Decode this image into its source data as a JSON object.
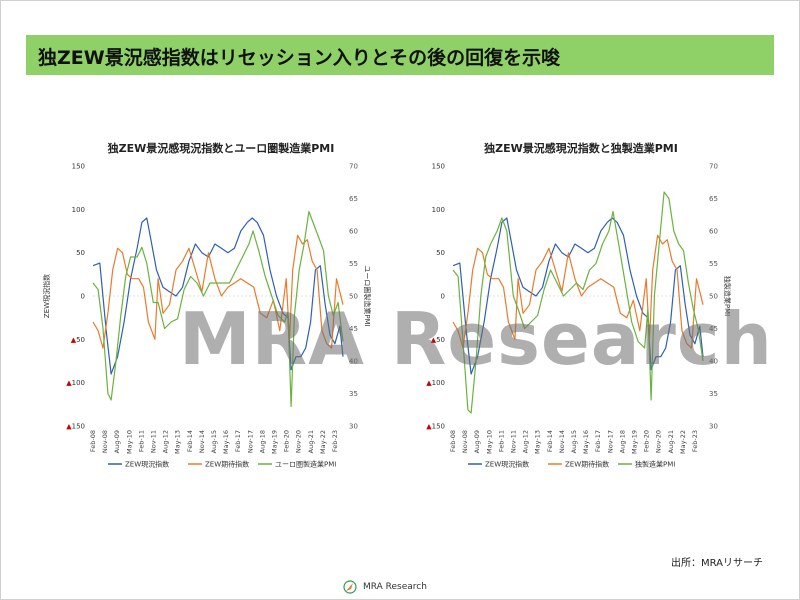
{
  "banner": {
    "title": "独ZEW景況感指数はリセッション入りとその後の回復を示唆"
  },
  "source_note": "出所：MRAリサーチ",
  "watermark": "MRA Research",
  "footer_logo": "MRA Research",
  "colors": {
    "zew_current": "#2f5fb3",
    "zew_expect": "#e87b2c",
    "pmi": "#6ab33d",
    "negative_marker": "#cc0000",
    "banner": "#8fd067"
  },
  "chart_data": [
    {
      "type": "line",
      "title": "独ZEW景況感現況指数とユーロ圏製造業PMI",
      "ylabel": "ZEW現況指数",
      "y2label": "ユーロ圏製造業PMI",
      "ylim": [
        -150,
        150
      ],
      "y_ticks": [
        "150",
        "100",
        "50",
        "0",
        "▲50",
        "▲100",
        "▲150"
      ],
      "y2lim": [
        30,
        70
      ],
      "y2_ticks": [
        "70",
        "65",
        "60",
        "55",
        "50",
        "45",
        "40",
        "35",
        "30"
      ],
      "x_range": [
        2008.083,
        2023.5
      ],
      "x_tick_labels": [
        "Feb-08",
        "Nov-08",
        "Aug-09",
        "May-10",
        "Feb-11",
        "Nov-11",
        "Aug-12",
        "May-13",
        "Feb-14",
        "Nov-14",
        "Aug-15",
        "May-16",
        "Feb-17",
        "Nov-17",
        "Aug-18",
        "May-19",
        "Feb-20",
        "Nov-20",
        "Aug-21",
        "May-22",
        "Feb-23"
      ],
      "legend": [
        "ZEW現況指数",
        "ZEW期待指数",
        "ユーロ圏製造業PMI"
      ],
      "legend_position": "bottom",
      "series": [
        {
          "name": "ZEW現況指数",
          "axis": "left",
          "x": [
            2008.08,
            2008.5,
            2008.9,
            2009.2,
            2009.6,
            2010.0,
            2010.4,
            2010.8,
            2011.1,
            2011.4,
            2011.7,
            2012.0,
            2012.4,
            2012.8,
            2013.2,
            2013.6,
            2014.0,
            2014.4,
            2014.8,
            2015.2,
            2015.6,
            2016.0,
            2016.4,
            2016.8,
            2017.2,
            2017.6,
            2017.9,
            2018.2,
            2018.6,
            2019.0,
            2019.4,
            2019.8,
            2020.1,
            2020.3,
            2020.6,
            2020.9,
            2021.2,
            2021.5,
            2021.8,
            2022.1,
            2022.4,
            2022.7,
            2023.0,
            2023.3,
            2023.5
          ],
          "y": [
            35,
            38,
            -40,
            -90,
            -70,
            -30,
            20,
            55,
            85,
            90,
            60,
            30,
            10,
            5,
            0,
            10,
            40,
            60,
            50,
            45,
            60,
            55,
            50,
            55,
            75,
            85,
            90,
            85,
            70,
            30,
            0,
            -20,
            -25,
            -85,
            -70,
            -70,
            -60,
            -30,
            30,
            35,
            -10,
            -45,
            -55,
            -35,
            -70
          ]
        },
        {
          "name": "ZEW期待指数",
          "axis": "left",
          "x": [
            2008.08,
            2008.4,
            2008.7,
            2009.0,
            2009.3,
            2009.6,
            2009.9,
            2010.2,
            2010.5,
            2010.9,
            2011.2,
            2011.5,
            2011.9,
            2012.1,
            2012.4,
            2012.8,
            2013.2,
            2013.6,
            2014.0,
            2014.4,
            2014.8,
            2015.2,
            2015.6,
            2016.0,
            2016.4,
            2016.8,
            2017.2,
            2017.6,
            2018.0,
            2018.4,
            2018.8,
            2019.2,
            2019.6,
            2020.0,
            2020.2,
            2020.4,
            2020.7,
            2021.0,
            2021.3,
            2021.6,
            2021.9,
            2022.2,
            2022.5,
            2022.8,
            2023.1,
            2023.5
          ],
          "y": [
            -30,
            -40,
            -60,
            -20,
            30,
            55,
            50,
            25,
            20,
            20,
            10,
            -30,
            -50,
            20,
            -20,
            -10,
            30,
            40,
            55,
            30,
            5,
            50,
            20,
            0,
            10,
            15,
            20,
            15,
            10,
            -20,
            -25,
            -5,
            -40,
            20,
            -50,
            30,
            70,
            60,
            65,
            40,
            30,
            -40,
            -55,
            -60,
            20,
            -10
          ]
        },
        {
          "name": "ユーロ圏製造業PMI",
          "axis": "right",
          "x": [
            2008.08,
            2008.4,
            2008.7,
            2009.0,
            2009.2,
            2009.5,
            2009.8,
            2010.1,
            2010.4,
            2010.8,
            2011.1,
            2011.4,
            2011.8,
            2012.1,
            2012.5,
            2012.9,
            2013.3,
            2013.7,
            2014.1,
            2014.5,
            2014.9,
            2015.3,
            2015.7,
            2016.1,
            2016.5,
            2016.9,
            2017.3,
            2017.7,
            2017.95,
            2018.3,
            2018.7,
            2019.1,
            2019.5,
            2019.9,
            2020.1,
            2020.3,
            2020.5,
            2020.8,
            2021.1,
            2021.4,
            2021.7,
            2022.0,
            2022.3,
            2022.6,
            2022.9,
            2023.2,
            2023.5
          ],
          "y": [
            52,
            51,
            45,
            35,
            34,
            40,
            47,
            53,
            56,
            56,
            57.5,
            55,
            49,
            49,
            45,
            46,
            46.5,
            51,
            53,
            52,
            50,
            52,
            52,
            52,
            52,
            54,
            56,
            58,
            60,
            57,
            53,
            50,
            47,
            46,
            47.5,
            33,
            47,
            54,
            58,
            63,
            61,
            59,
            57,
            50,
            47,
            49,
            43
          ]
        }
      ]
    },
    {
      "type": "line",
      "title": "独ZEW景況感現況指数と独製造業PMI",
      "ylabel": "",
      "y2label": "独製造業PMI",
      "ylim": [
        -150,
        150
      ],
      "y_ticks": [
        "150",
        "100",
        "50",
        "0",
        "▲50",
        "▲100",
        "▲150"
      ],
      "y2lim": [
        30,
        70
      ],
      "y2_ticks": [
        "70",
        "65",
        "60",
        "55",
        "50",
        "45",
        "40",
        "35",
        "30"
      ],
      "x_range": [
        2008.083,
        2023.5
      ],
      "x_tick_labels": [
        "Feb-08",
        "Nov-08",
        "Aug-09",
        "May-10",
        "Feb-11",
        "Nov-11",
        "Aug-12",
        "May-13",
        "Feb-14",
        "Nov-14",
        "Aug-15",
        "May-16",
        "Feb-17",
        "Nov-17",
        "Aug-18",
        "May-19",
        "Feb-20",
        "Nov-20",
        "Aug-21",
        "May-22",
        "Feb-23"
      ],
      "legend": [
        "ZEW現況指数",
        "ZEW期待指数",
        "独製造業PMI"
      ],
      "legend_position": "bottom",
      "series": [
        {
          "name": "ZEW現況指数",
          "axis": "left",
          "x": [
            2008.08,
            2008.5,
            2008.9,
            2009.2,
            2009.6,
            2010.0,
            2010.4,
            2010.8,
            2011.1,
            2011.4,
            2011.7,
            2012.0,
            2012.4,
            2012.8,
            2013.2,
            2013.6,
            2014.0,
            2014.4,
            2014.8,
            2015.2,
            2015.6,
            2016.0,
            2016.4,
            2016.8,
            2017.2,
            2017.6,
            2017.9,
            2018.2,
            2018.6,
            2019.0,
            2019.4,
            2019.8,
            2020.1,
            2020.3,
            2020.6,
            2020.9,
            2021.2,
            2021.5,
            2021.8,
            2022.1,
            2022.4,
            2022.7,
            2023.0,
            2023.3,
            2023.5
          ],
          "y": [
            35,
            38,
            -40,
            -90,
            -70,
            -30,
            20,
            55,
            85,
            90,
            60,
            30,
            10,
            5,
            0,
            10,
            40,
            60,
            50,
            45,
            60,
            55,
            50,
            55,
            75,
            85,
            90,
            85,
            70,
            30,
            0,
            -20,
            -25,
            -85,
            -70,
            -70,
            -60,
            -30,
            30,
            35,
            -10,
            -45,
            -55,
            -35,
            -70
          ]
        },
        {
          "name": "ZEW期待指数",
          "axis": "left",
          "x": [
            2008.08,
            2008.4,
            2008.7,
            2009.0,
            2009.3,
            2009.6,
            2009.9,
            2010.2,
            2010.5,
            2010.9,
            2011.2,
            2011.5,
            2011.9,
            2012.1,
            2012.4,
            2012.8,
            2013.2,
            2013.6,
            2014.0,
            2014.4,
            2014.8,
            2015.2,
            2015.6,
            2016.0,
            2016.4,
            2016.8,
            2017.2,
            2017.6,
            2018.0,
            2018.4,
            2018.8,
            2019.2,
            2019.6,
            2020.0,
            2020.2,
            2020.4,
            2020.7,
            2021.0,
            2021.3,
            2021.6,
            2021.9,
            2022.2,
            2022.5,
            2022.8,
            2023.1,
            2023.5
          ],
          "y": [
            -30,
            -40,
            -60,
            -20,
            30,
            55,
            50,
            25,
            20,
            20,
            10,
            -30,
            -50,
            20,
            -20,
            -10,
            30,
            40,
            55,
            30,
            5,
            50,
            20,
            0,
            10,
            15,
            20,
            15,
            10,
            -20,
            -25,
            -5,
            -40,
            20,
            -50,
            30,
            70,
            60,
            65,
            40,
            30,
            -40,
            -55,
            -60,
            20,
            -10
          ]
        },
        {
          "name": "独製造業PMI",
          "axis": "right",
          "x": [
            2008.08,
            2008.4,
            2008.7,
            2009.0,
            2009.2,
            2009.5,
            2009.8,
            2010.1,
            2010.4,
            2010.8,
            2011.1,
            2011.4,
            2011.8,
            2012.1,
            2012.5,
            2012.9,
            2013.3,
            2013.7,
            2014.1,
            2014.5,
            2014.9,
            2015.3,
            2015.7,
            2016.1,
            2016.5,
            2016.9,
            2017.3,
            2017.7,
            2017.95,
            2018.3,
            2018.7,
            2019.1,
            2019.5,
            2019.9,
            2020.1,
            2020.3,
            2020.5,
            2020.8,
            2021.1,
            2021.4,
            2021.7,
            2022.0,
            2022.3,
            2022.6,
            2022.9,
            2023.2,
            2023.5
          ],
          "y": [
            54,
            53,
            43,
            32.5,
            32,
            40,
            50,
            56,
            58,
            60,
            62,
            60,
            50,
            48,
            45,
            46,
            47,
            51,
            54,
            52,
            50,
            51,
            52,
            51,
            54,
            55,
            58,
            60,
            63,
            58,
            52,
            46,
            43,
            42,
            48,
            34,
            50,
            58,
            66,
            65,
            60,
            58,
            57,
            52,
            48,
            45,
            40
          ]
        }
      ]
    }
  ]
}
